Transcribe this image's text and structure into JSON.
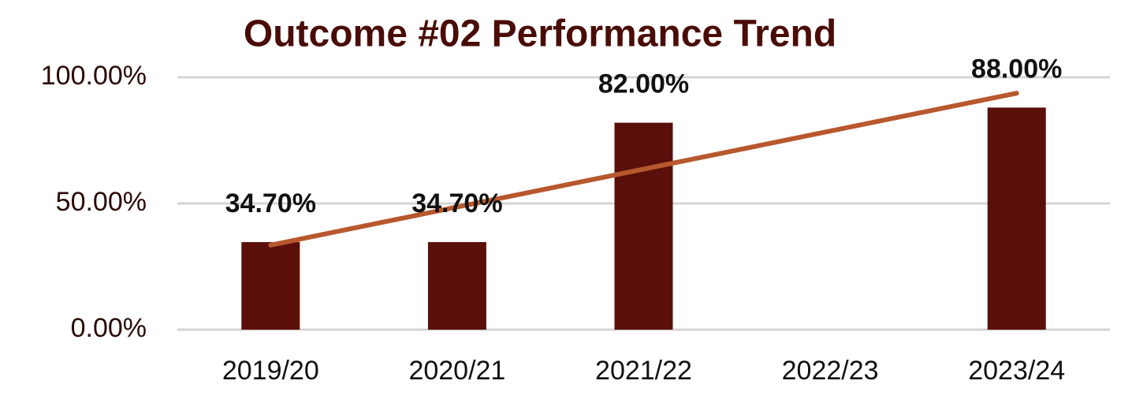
{
  "chart_data": {
    "type": "bar",
    "title": "Outcome #02 Performance Trend",
    "categories": [
      "2019/20",
      "2020/21",
      "2021/22",
      "2022/23",
      "2023/24"
    ],
    "values": [
      34.7,
      34.7,
      82,
      null,
      88
    ],
    "value_labels": [
      "34.70%",
      "34.70%",
      "82.00%",
      null,
      "88.00%"
    ],
    "color": "#5a0f0a",
    "trendline": {
      "color": "#b8582e",
      "values": [
        33.5,
        48.6,
        63.6,
        78.7,
        93.7
      ]
    },
    "ylim": [
      0,
      100
    ],
    "yticks": [
      {
        "value": 0,
        "label": "0.00%"
      },
      {
        "value": 50,
        "label": "50.00%"
      },
      {
        "value": 100,
        "label": "100.00%"
      }
    ],
    "grid": true
  }
}
